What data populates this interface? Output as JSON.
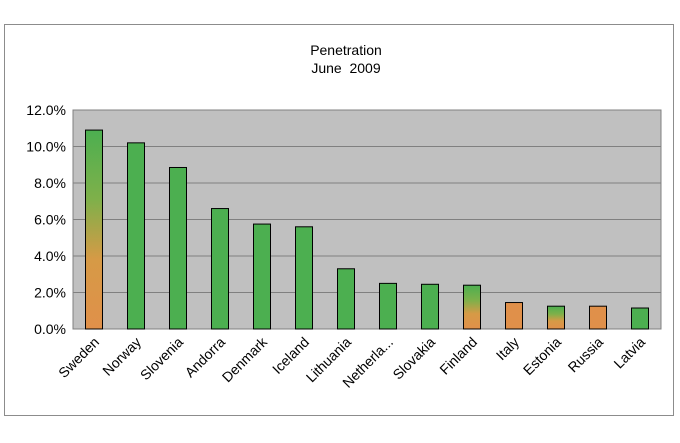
{
  "chart_data": {
    "type": "bar",
    "title": "Penetration",
    "subtitle": "June  2009",
    "xlabel": "",
    "ylabel": "",
    "ylim": [
      0,
      12
    ],
    "yticks": [
      "0.0%",
      "2.0%",
      "4.0%",
      "6.0%",
      "8.0%",
      "10.0%",
      "12.0%"
    ],
    "grid": true,
    "legend": "none",
    "categories": [
      "Sweden",
      "Norway",
      "Slovenia",
      "Andorra",
      "Denmark",
      "Iceland",
      "Lithuania",
      "Netherla...",
      "Slovakia",
      "Finland",
      "Italy",
      "Estonia",
      "Russia",
      "Latvia"
    ],
    "values": [
      10.9,
      10.2,
      8.85,
      6.6,
      5.75,
      5.6,
      3.3,
      2.5,
      2.45,
      2.4,
      1.45,
      1.25,
      1.25,
      1.15
    ],
    "bar_styles": [
      "orange-green",
      "green",
      "green",
      "green",
      "green",
      "green",
      "green",
      "green",
      "green",
      "orange-green",
      "orange",
      "orange-green",
      "orange",
      "green"
    ]
  },
  "colors": {
    "plot_background": "#c0c0c0",
    "bar_green": "#4caf50",
    "bar_orange": "#e0904a",
    "gridline": "#ffffff"
  }
}
